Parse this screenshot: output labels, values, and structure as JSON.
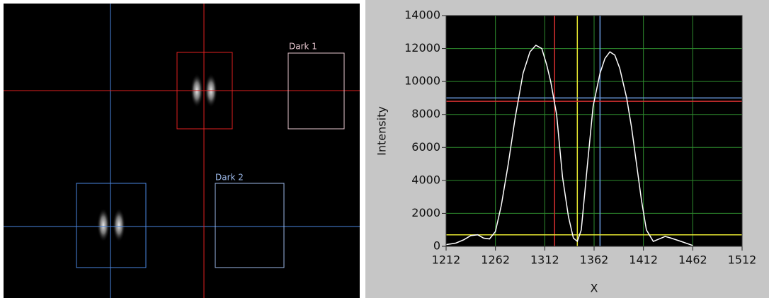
{
  "image_panel": {
    "roi_labels": [
      "Dark 1",
      "Dark 2"
    ]
  },
  "chart_data": {
    "type": "line",
    "xlabel": "X",
    "ylabel": "Intensity",
    "x": [
      1212,
      1222,
      1230,
      1237,
      1244,
      1250,
      1256,
      1262,
      1268,
      1275,
      1282,
      1290,
      1297,
      1303,
      1309,
      1314,
      1318,
      1324,
      1330,
      1336,
      1341,
      1345,
      1349,
      1355,
      1361,
      1368,
      1373,
      1378,
      1383,
      1388,
      1395,
      1400,
      1405,
      1410,
      1415,
      1422,
      1428,
      1434,
      1440,
      1450,
      1462
    ],
    "series": [
      {
        "color": "#ffffff",
        "values": [
          100,
          200,
          400,
          650,
          700,
          500,
          450,
          900,
          2500,
          5000,
          7800,
          10500,
          11800,
          12200,
          12000,
          11000,
          10000,
          8000,
          4200,
          1800,
          500,
          300,
          1000,
          4800,
          8500,
          10500,
          11400,
          11800,
          11600,
          10800,
          9000,
          7200,
          5000,
          2800,
          1000,
          300,
          450,
          600,
          500,
          300,
          50
        ]
      }
    ],
    "cursors": [
      {
        "axis": "x",
        "value": 1322,
        "color": "#d43030"
      },
      {
        "axis": "x",
        "value": 1345,
        "color": "#e8e830"
      },
      {
        "axis": "x",
        "value": 1368,
        "color": "#6a9ae0"
      },
      {
        "axis": "y",
        "value": 9000,
        "color": "#6a9ae0"
      },
      {
        "axis": "y",
        "value": 8800,
        "color": "#d43030"
      },
      {
        "axis": "y",
        "value": 700,
        "color": "#e8e830"
      }
    ],
    "xlim": [
      1212,
      1512
    ],
    "xticks": [
      1212,
      1262,
      1312,
      1362,
      1412,
      1462,
      1512
    ],
    "ylim": [
      0,
      14000
    ],
    "yticks": [
      0,
      2000,
      4000,
      6000,
      8000,
      10000,
      12000,
      14000
    ],
    "grid": true,
    "grid_color": "#2e8b2e",
    "background": "#000000"
  }
}
